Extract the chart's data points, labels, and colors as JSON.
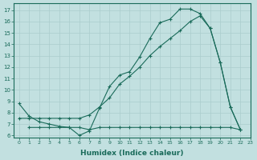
{
  "xlabel": "Humidex (Indice chaleur)",
  "background_color": "#c2e0e0",
  "grid_color": "#aacccc",
  "line_color": "#1a6b5a",
  "xlim": [
    -0.5,
    23
  ],
  "ylim": [
    5.8,
    17.6
  ],
  "yticks": [
    6,
    7,
    8,
    9,
    10,
    11,
    12,
    13,
    14,
    15,
    16,
    17
  ],
  "xticks": [
    0,
    1,
    2,
    3,
    4,
    5,
    6,
    7,
    8,
    9,
    10,
    11,
    12,
    13,
    14,
    15,
    16,
    17,
    18,
    19,
    20,
    21,
    22,
    23
  ],
  "series": [
    {
      "x": [
        0,
        1,
        2,
        3,
        4,
        5,
        6,
        7,
        8,
        9,
        10,
        11,
        12,
        13,
        14,
        15,
        16,
        17,
        18,
        19,
        20,
        21,
        22
      ],
      "y": [
        8.8,
        7.7,
        7.2,
        7.0,
        6.8,
        6.7,
        6.0,
        6.4,
        8.4,
        10.3,
        11.3,
        11.6,
        12.9,
        14.5,
        15.9,
        16.2,
        17.1,
        17.1,
        16.7,
        15.4,
        12.4,
        8.5,
        6.5
      ]
    },
    {
      "x": [
        0,
        1,
        2,
        3,
        4,
        5,
        6,
        7,
        8,
        9,
        10,
        11,
        12,
        13,
        14,
        15,
        16,
        17,
        18,
        19,
        20,
        21,
        22
      ],
      "y": [
        7.5,
        7.5,
        7.5,
        7.5,
        7.5,
        7.5,
        7.5,
        7.8,
        8.5,
        9.3,
        10.5,
        11.2,
        12.0,
        13.0,
        13.8,
        14.5,
        15.2,
        16.0,
        16.5,
        15.4,
        12.4,
        8.5,
        6.5
      ]
    },
    {
      "x": [
        1,
        2,
        3,
        4,
        5,
        6,
        7,
        8,
        9,
        10,
        11,
        12,
        13,
        14,
        15,
        16,
        17,
        18,
        19,
        20,
        21,
        22
      ],
      "y": [
        6.7,
        6.7,
        6.7,
        6.7,
        6.7,
        6.7,
        6.5,
        6.7,
        6.7,
        6.7,
        6.7,
        6.7,
        6.7,
        6.7,
        6.7,
        6.7,
        6.7,
        6.7,
        6.7,
        6.7,
        6.7,
        6.5
      ]
    }
  ]
}
